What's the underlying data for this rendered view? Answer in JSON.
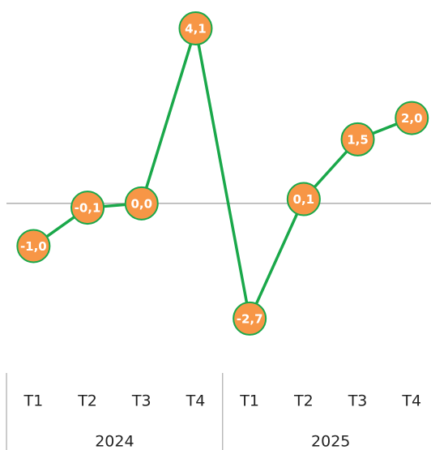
{
  "chart_data": {
    "type": "line",
    "categories": [
      "T1",
      "T2",
      "T3",
      "T4",
      "T1",
      "T2",
      "T3",
      "T4"
    ],
    "groups": [
      "2024",
      "2025"
    ],
    "values": [
      -1.0,
      -0.1,
      0.0,
      4.1,
      -2.7,
      0.1,
      1.5,
      2.0
    ],
    "value_labels": [
      "-1,0",
      "-0,1",
      "0,0",
      "4,1",
      "-2,7",
      "0,1",
      "1,5",
      "2,0"
    ],
    "ylim": [
      -3.5,
      4.5
    ],
    "color": "#1aa84a",
    "marker_color": "#f79646"
  }
}
